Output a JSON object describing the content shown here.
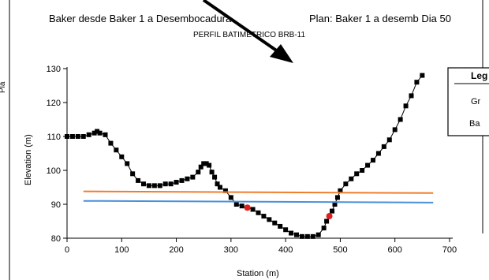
{
  "header": {
    "left_title": "Baker desde Baker 1 a Desembocadura",
    "right_title": "Plan: Baker 1 a desemb Dia 50",
    "subtitle": "PERFIL BATIMÉTRICO BRB-11",
    "side_fragment": "Pla"
  },
  "legend": {
    "title_fragment": "Leg",
    "item1_fragment": "Gr",
    "item2_fragment": "Ba"
  },
  "colors": {
    "ground": "#000000",
    "orange_line": "#f07d2b",
    "blue_line": "#4a90d9",
    "red_marker": "#e02020",
    "arrow": "#000000"
  },
  "chart_data": {
    "type": "line",
    "xlabel": "Station (m)",
    "ylabel": "Elevation (m)",
    "xlim": [
      0,
      700
    ],
    "ylim": [
      80,
      130
    ],
    "x_ticks": [
      0,
      100,
      200,
      300,
      400,
      500,
      600,
      700
    ],
    "y_ticks": [
      80,
      90,
      100,
      110,
      120,
      130
    ],
    "grid": false,
    "series": [
      {
        "kind": "ground",
        "markers": "square",
        "x": [
          0,
          10,
          20,
          30,
          40,
          50,
          55,
          60,
          70,
          80,
          90,
          100,
          110,
          120,
          130,
          140,
          150,
          160,
          170,
          180,
          190,
          200,
          210,
          220,
          230,
          240,
          245,
          250,
          255,
          260,
          265,
          270,
          275,
          280,
          290,
          300,
          310,
          320,
          330,
          340,
          350,
          360,
          370,
          380,
          390,
          400,
          410,
          420,
          430,
          440,
          450,
          460,
          470,
          475,
          480,
          485,
          490,
          495,
          500,
          510,
          520,
          530,
          540,
          550,
          560,
          570,
          580,
          590,
          600,
          610,
          620,
          630,
          640,
          650
        ],
        "y": [
          110,
          110,
          110,
          110,
          110.5,
          111,
          111.5,
          111,
          110.5,
          108,
          106,
          104,
          102,
          99,
          97,
          96,
          95.5,
          95.5,
          95.5,
          96,
          96,
          96.5,
          97,
          97.5,
          98,
          99.5,
          101,
          102,
          102,
          101.5,
          99.5,
          98,
          96,
          95,
          94,
          92,
          90,
          89.5,
          89,
          88.5,
          87.5,
          86.5,
          85.5,
          84.5,
          83.5,
          82.5,
          81.5,
          81,
          80.5,
          80.5,
          80.5,
          81,
          83,
          85,
          86.5,
          88,
          90,
          92,
          94,
          96,
          97.5,
          99,
          100,
          101.5,
          103,
          105,
          107,
          109,
          112,
          115,
          119,
          122,
          126,
          128
        ]
      },
      {
        "kind": "water_surface_orange",
        "x": [
          30,
          670
        ],
        "y": [
          93.8,
          93.3
        ]
      },
      {
        "kind": "water_surface_blue",
        "x": [
          30,
          670
        ],
        "y": [
          91,
          90.5
        ]
      },
      {
        "kind": "red_markers",
        "x": [
          330,
          480
        ],
        "y": [
          89,
          86.5
        ]
      }
    ]
  }
}
